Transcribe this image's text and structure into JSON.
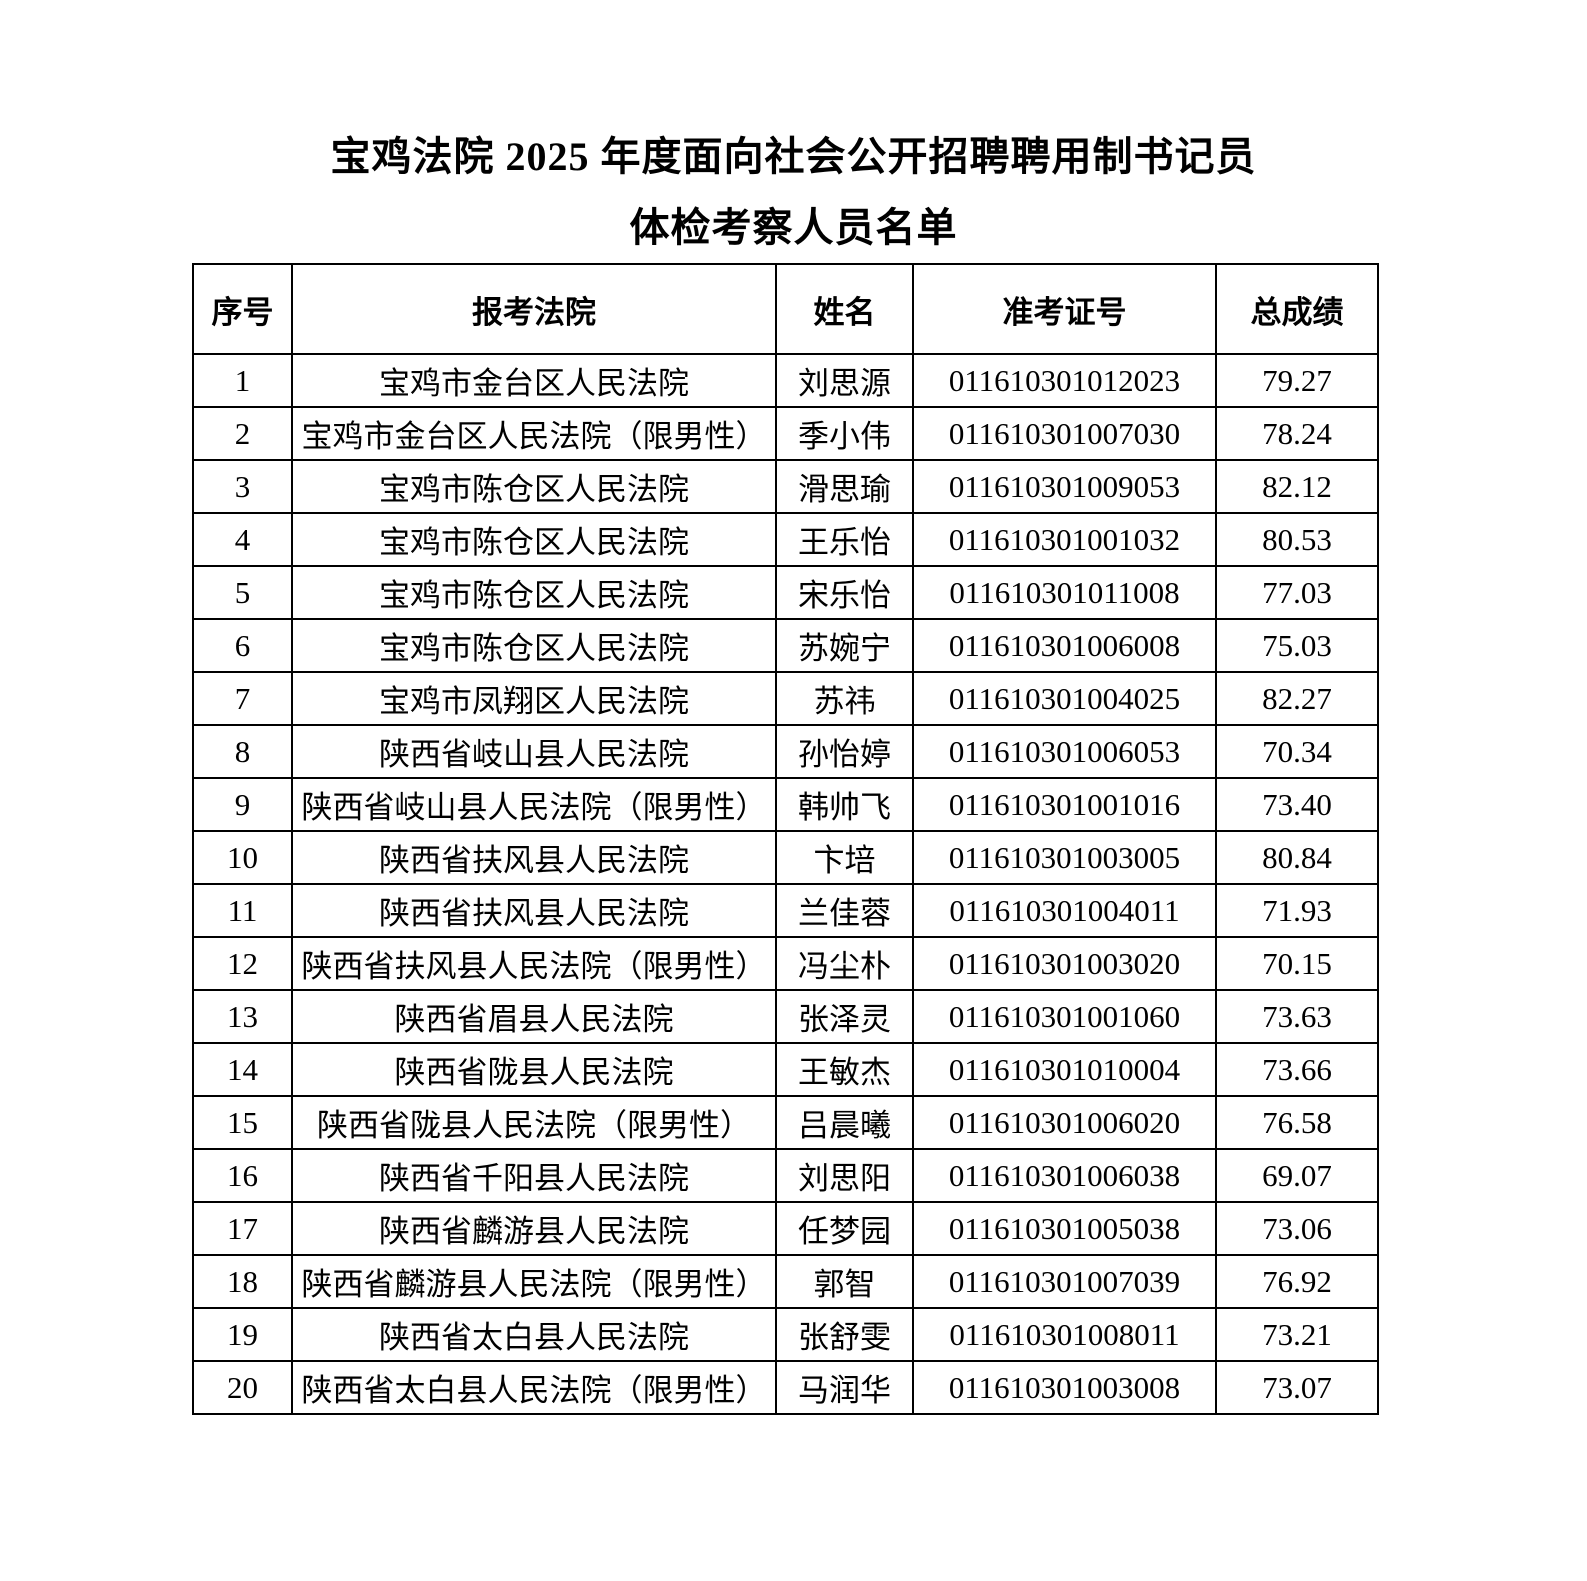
{
  "document": {
    "title_line1": "宝鸡法院 2025 年度面向社会公开招聘聘用制书记员",
    "title_line2": "体检考察人员名单"
  },
  "table": {
    "headers": {
      "serial": "序号",
      "court": "报考法院",
      "name": "姓名",
      "ticket": "准考证号",
      "score": "总成绩"
    },
    "rows": [
      {
        "no": "1",
        "court": "宝鸡市金台区人民法院",
        "name": "刘思源",
        "ticket": "011610301012023",
        "score": "79.27"
      },
      {
        "no": "2",
        "court": "宝鸡市金台区人民法院（限男性）",
        "name": "季小伟",
        "ticket": "011610301007030",
        "score": "78.24"
      },
      {
        "no": "3",
        "court": "宝鸡市陈仓区人民法院",
        "name": "滑思瑜",
        "ticket": "011610301009053",
        "score": "82.12"
      },
      {
        "no": "4",
        "court": "宝鸡市陈仓区人民法院",
        "name": "王乐怡",
        "ticket": "011610301001032",
        "score": "80.53"
      },
      {
        "no": "5",
        "court": "宝鸡市陈仓区人民法院",
        "name": "宋乐怡",
        "ticket": "011610301011008",
        "score": "77.03"
      },
      {
        "no": "6",
        "court": "宝鸡市陈仓区人民法院",
        "name": "苏婉宁",
        "ticket": "011610301006008",
        "score": "75.03"
      },
      {
        "no": "7",
        "court": "宝鸡市凤翔区人民法院",
        "name": "苏祎",
        "ticket": "011610301004025",
        "score": "82.27"
      },
      {
        "no": "8",
        "court": "陕西省岐山县人民法院",
        "name": "孙怡婷",
        "ticket": "011610301006053",
        "score": "70.34"
      },
      {
        "no": "9",
        "court": "陕西省岐山县人民法院（限男性）",
        "name": "韩帅飞",
        "ticket": "011610301001016",
        "score": "73.40"
      },
      {
        "no": "10",
        "court": "陕西省扶风县人民法院",
        "name": "卞培",
        "ticket": "011610301003005",
        "score": "80.84"
      },
      {
        "no": "11",
        "court": "陕西省扶风县人民法院",
        "name": "兰佳蓉",
        "ticket": "011610301004011",
        "score": "71.93"
      },
      {
        "no": "12",
        "court": "陕西省扶风县人民法院（限男性）",
        "name": "冯尘朴",
        "ticket": "011610301003020",
        "score": "70.15"
      },
      {
        "no": "13",
        "court": "陕西省眉县人民法院",
        "name": "张泽灵",
        "ticket": "011610301001060",
        "score": "73.63"
      },
      {
        "no": "14",
        "court": "陕西省陇县人民法院",
        "name": "王敏杰",
        "ticket": "011610301010004",
        "score": "73.66"
      },
      {
        "no": "15",
        "court": "陕西省陇县人民法院（限男性）",
        "name": "吕晨曦",
        "ticket": "011610301006020",
        "score": "76.58"
      },
      {
        "no": "16",
        "court": "陕西省千阳县人民法院",
        "name": "刘思阳",
        "ticket": "011610301006038",
        "score": "69.07"
      },
      {
        "no": "17",
        "court": "陕西省麟游县人民法院",
        "name": "任梦园",
        "ticket": "011610301005038",
        "score": "73.06"
      },
      {
        "no": "18",
        "court": "陕西省麟游县人民法院（限男性）",
        "name": "郭智",
        "ticket": "011610301007039",
        "score": "76.92"
      },
      {
        "no": "19",
        "court": "陕西省太白县人民法院",
        "name": "张舒雯",
        "ticket": "011610301008011",
        "score": "73.21"
      },
      {
        "no": "20",
        "court": "陕西省太白县人民法院（限男性）",
        "name": "马润华",
        "ticket": "011610301003008",
        "score": "73.07"
      }
    ]
  },
  "colors": {
    "text": "#000000",
    "border": "#000000",
    "background": "#ffffff"
  }
}
